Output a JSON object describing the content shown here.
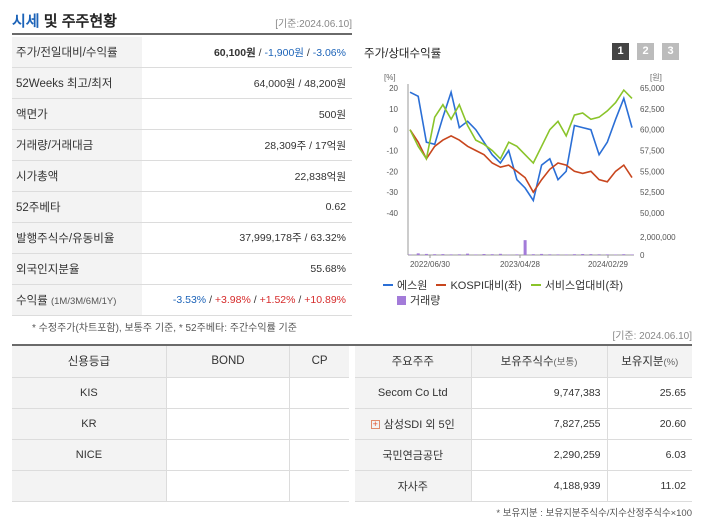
{
  "header": {
    "title_main": "시세",
    "title_rest": " 및 주주현황",
    "basis_date": "[기준:2024.06.10]"
  },
  "quote": {
    "rows": [
      {
        "label": "주가/전일대비/수익률",
        "price": "60,100원",
        "sep1": " / ",
        "change": "-1,900원",
        "sep2": " / ",
        "pct": "-3.06%"
      },
      {
        "label": "52Weeks 최고/최저",
        "value": "64,000원 / 48,200원"
      },
      {
        "label": "액면가",
        "value": "500원"
      },
      {
        "label": "거래량/거래대금",
        "value": "28,309주 / 17억원"
      },
      {
        "label": "시가총액",
        "value": "22,838억원"
      },
      {
        "label": "52주베타",
        "value": "0.62"
      },
      {
        "label": "발행주식수/유동비율",
        "value": "37,999,178주 / 63.32%"
      },
      {
        "label": "외국인지분율",
        "value": "55.68%"
      },
      {
        "label": "수익률",
        "label_sub": "(1M/3M/6M/1Y)",
        "r1": "-3.53%",
        "r2": "+3.98%",
        "r3": "+1.52%",
        "r4": "+10.89%",
        "sep": "/ "
      }
    ],
    "footnote": "* 수정주가(차트포함), 보통주 기준, * 52주베타: 주간수익률 기준"
  },
  "chart_section": {
    "title": "주가/상대수익률",
    "period_buttons": [
      "1",
      "2",
      "3"
    ],
    "left_unit": "[%]",
    "right_unit": "[원]",
    "legend": {
      "line1": "에스원",
      "line2": "KOSPI대비(좌)",
      "line3": "서비스업대비(좌)",
      "bar": "거래량"
    },
    "colors": {
      "line1": "#2b6fd6",
      "line2": "#c8461e",
      "line3": "#8ac42a",
      "bar": "#a37bd9"
    }
  },
  "chart_data": {
    "type": "line",
    "x_tick_labels": [
      "2022/06/30",
      "2023/04/28",
      "2024/02/29"
    ],
    "y_left": {
      "label": "[%]",
      "ticks": [
        20,
        10,
        0,
        -10,
        -20,
        -30,
        -40
      ],
      "lim": [
        -40,
        20
      ]
    },
    "y_right": {
      "label": "[원]",
      "ticks": [
        "65,000",
        "62,500",
        "60,000",
        "57,500",
        "55,000",
        "52,500",
        "50,000"
      ],
      "lim": [
        50000,
        65000
      ]
    },
    "volume_axis": {
      "ticks": [
        "2,000,000",
        "0"
      ],
      "lim": [
        0,
        2000000
      ]
    },
    "series": [
      {
        "name": "에스원",
        "axis": "left",
        "values": [
          18,
          16,
          -6,
          -7,
          6,
          18,
          1,
          4,
          0,
          -6,
          -12,
          -16,
          -10,
          -24,
          -28,
          -34,
          -17,
          -14,
          -24,
          -20,
          2,
          1,
          0,
          -12,
          -6,
          5,
          15,
          1
        ]
      },
      {
        "name": "KOSPI대비(좌)",
        "axis": "left",
        "values": [
          0,
          -6,
          -14,
          -8,
          -5,
          -3,
          -5,
          -8,
          -10,
          -12,
          -16,
          -18,
          -17,
          -20,
          -23,
          -30,
          -24,
          -19,
          -16,
          -17,
          -20,
          -21,
          -20,
          -24,
          -25,
          -20,
          -17,
          -23
        ]
      },
      {
        "name": "서비스업대비(좌)",
        "axis": "left",
        "values": [
          0,
          -8,
          -14,
          6,
          12,
          5,
          12,
          2,
          -5,
          -7,
          -10,
          -14,
          -6,
          -8,
          -12,
          -16,
          -8,
          0,
          4,
          -3,
          7,
          8,
          5,
          6,
          9,
          13,
          19,
          15
        ]
      },
      {
        "name": "거래량",
        "axis": "volume",
        "values": [
          60000,
          180000,
          120000,
          90000,
          100000,
          70000,
          80000,
          150000,
          60000,
          110000,
          90000,
          130000,
          50000,
          70000,
          1650000,
          90000,
          120000,
          80000,
          70000,
          60000,
          90000,
          110000,
          100000,
          80000,
          70000,
          50000,
          90000,
          60000
        ]
      }
    ]
  },
  "basis_mid": "[기준: 2024.06.10]",
  "credit": {
    "headers": [
      "신용등급",
      "BOND",
      "CP"
    ],
    "rows": [
      [
        "KIS",
        "",
        ""
      ],
      [
        "KR",
        "",
        ""
      ],
      [
        "NICE",
        "",
        ""
      ],
      [
        "",
        "",
        ""
      ]
    ]
  },
  "holders": {
    "headers": {
      "h1": "주요주주",
      "h2": "보유주식수",
      "h2u": "(보통)",
      "h3": "보유지분",
      "h3u": "(%)"
    },
    "rows": [
      {
        "name": "Secom Co Ltd",
        "shares": "9,747,383",
        "pct": "25.65"
      },
      {
        "name": "삼성SDI 외 5인",
        "shares": "7,827,255",
        "pct": "20.60",
        "expand_icon": "+"
      },
      {
        "name": "국민연금공단",
        "shares": "2,290,259",
        "pct": "6.03"
      },
      {
        "name": "자사주",
        "shares": "4,188,939",
        "pct": "11.02"
      }
    ],
    "footnote": "* 보유지분 : 보유지분주식수/지수산정주식수×100"
  }
}
